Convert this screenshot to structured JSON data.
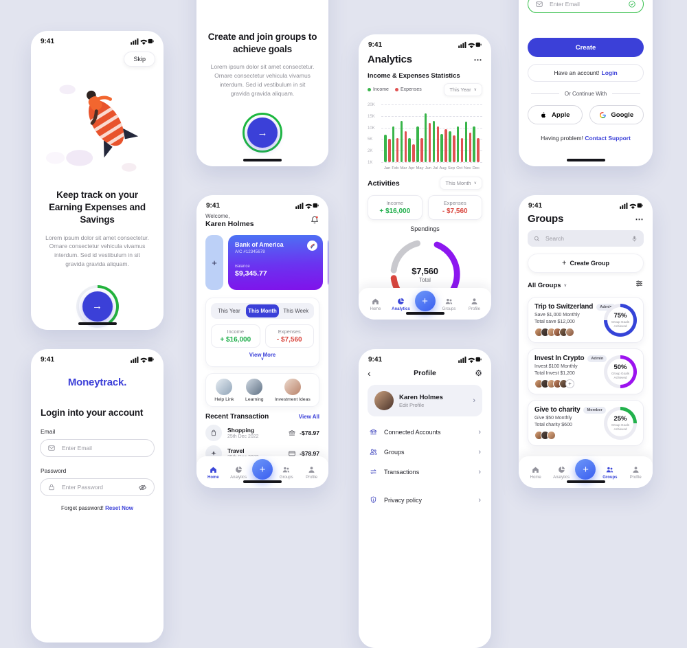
{
  "colors": {
    "accent": "#3b40d8",
    "green": "#1fae4b",
    "red": "#d9463e",
    "chart_green": "#39b54a",
    "chart_red": "#e05252",
    "card_gradient_top": "#4b74f4",
    "card_gradient_bottom": "#8012ea",
    "ring_blue": "#3544d8",
    "ring_purple": "#9c13ef",
    "ring_green": "#22b14c"
  },
  "status_bar": {
    "time": "9:41"
  },
  "nav": {
    "home": "Home",
    "analytics": "Analytics",
    "groups": "Groups",
    "profile": "Profile"
  },
  "onboarding1": {
    "skip": "Skip",
    "title": "Keep track on your Earning Expenses and Savings",
    "body": "Lorem ipsum dolor sit amet consectetur. Ornare consectetur vehicula vivamus interdum. Sed id vestibulum in sit gravida gravida aliquam."
  },
  "onboarding2": {
    "title": "Create and join groups to achieve goals",
    "body": "Lorem ipsum dolor sit amet consectetur. Ornare consectetur vehicula vivamus interdum. Sed id vestibulum in sit gravida gravida aliquam."
  },
  "signup": {
    "email_placeholder": "Enter Email",
    "create": "Create",
    "have_account": "Have an account!",
    "login_link": "Login",
    "or_continue": "Or Continue With",
    "apple": "Apple",
    "google": "Google",
    "having_problem": "Having problem!",
    "contact_support": "Contact Support"
  },
  "login": {
    "logo": "Moneytrack.",
    "title": "Login into your account",
    "email_label": "Email",
    "email_placeholder": "Enter Email",
    "password_label": "Password",
    "password_placeholder": "Enter Password",
    "forget": "Forget password!",
    "reset": "Reset Now"
  },
  "home": {
    "welcome": "Welcome,",
    "name": "Karen Holmes",
    "card": {
      "bank": "Bank of America",
      "account": "A/C #12345678",
      "balance_label": "Balance",
      "balance": "$9,345.77"
    },
    "tabs": [
      "This Year",
      "This Month",
      "This Week"
    ],
    "active_tab": "This Month",
    "income_label": "Income",
    "income": "+ $16,000",
    "expenses_label": "Expenses",
    "expenses": "- $7,560",
    "view_more": "View More",
    "shortcuts": [
      "Help Link",
      "Learning",
      "Investment Ideas"
    ],
    "recent_title": "Recent Transaction",
    "view_all": "View All",
    "transactions": [
      {
        "name": "Shopping",
        "date": "25th Dec 2022",
        "amount": "-$78.97"
      },
      {
        "name": "Travel",
        "date": "25th Dec 2022",
        "amount": "-$78.97"
      }
    ]
  },
  "analytics": {
    "title": "Analytics",
    "section": "Income & Expenses Statistics",
    "range": "This Year",
    "activities": "Activities",
    "activities_range": "This Month",
    "income_label": "Income",
    "income": "+ $16,000",
    "expenses_label": "Expenses",
    "expenses": "- $7,560",
    "spendings": "Spendings",
    "total": "$7,560",
    "total_label": "Total",
    "gauge": {
      "type": "donut",
      "segments": [
        {
          "color": "#8c17ef",
          "start": 6,
          "share": 38
        },
        {
          "color": "#22b14c",
          "start": 46.5,
          "share": 3.5
        },
        {
          "color": "#4a6cf5",
          "start": 54,
          "share": 3.5
        },
        {
          "color": "#d9463e",
          "start": 61,
          "share": 12
        },
        {
          "color": "#c9c9ce",
          "start": 77,
          "share": 19
        }
      ]
    }
  },
  "chart_data": {
    "type": "bar",
    "title": "Income & Expenses Statistics",
    "categories": [
      "Jan",
      "Feb",
      "Mar",
      "Apr",
      "May",
      "Jun",
      "Jul",
      "Aug",
      "Sep",
      "Oct",
      "Nov",
      "Dec"
    ],
    "series": [
      {
        "name": "Income",
        "color": "#39b54a",
        "values": [
          7000,
          10500,
          13000,
          5500,
          10500,
          16000,
          13000,
          7200,
          8500,
          10500,
          12500,
          10500
        ]
      },
      {
        "name": "Expenses",
        "color": "#e05252",
        "values": [
          5000,
          5500,
          8300,
          3700,
          5500,
          12000,
          10500,
          9400,
          6700,
          5500,
          7800,
          5500
        ]
      }
    ],
    "yticks": [
      "20K",
      "15K",
      "10K",
      "5K",
      "2K",
      "1K"
    ],
    "ytick_values": [
      20000,
      15000,
      10000,
      5000,
      2000,
      1000
    ],
    "ylim": [
      1000,
      20000
    ],
    "grid": "dashed-horizontal",
    "legend_position": "top-left",
    "note": "y axis ticks evenly spaced (non-linear value scale)"
  },
  "profile": {
    "title": "Profile",
    "name": "Karen Holmes",
    "edit": "Edit Profile",
    "items": [
      "Connected Accounts",
      "Groups",
      "Transactions",
      "Privacy policy"
    ]
  },
  "groups": {
    "title": "Groups",
    "search_placeholder": "Search",
    "create_group": "Create Group",
    "all_groups": "All Groups",
    "cards": [
      {
        "name": "Trip to Switzerland",
        "badge": "Admin",
        "line1": "Save $1,000 Monthly",
        "line2": "Total save $12,000",
        "percent": 75,
        "ring_color": "#3544d8",
        "goal_label": "Group Goals Achieved",
        "members": 6
      },
      {
        "name": "Invest In Crypto",
        "badge": "Admin",
        "line1": "Invest $100 Monthly",
        "line2": "Total Invest $1,200",
        "percent": 50,
        "ring_color": "#9c13ef",
        "goal_label": "Group Goals Achieved",
        "members": 5
      },
      {
        "name": "Give to charity",
        "badge": "Member",
        "line1": "Give $50 Monthly",
        "line2": "Total charity $600",
        "percent": 25,
        "ring_color": "#22b14c",
        "goal_label": "Group Goals Achieved",
        "members": 3
      }
    ]
  }
}
